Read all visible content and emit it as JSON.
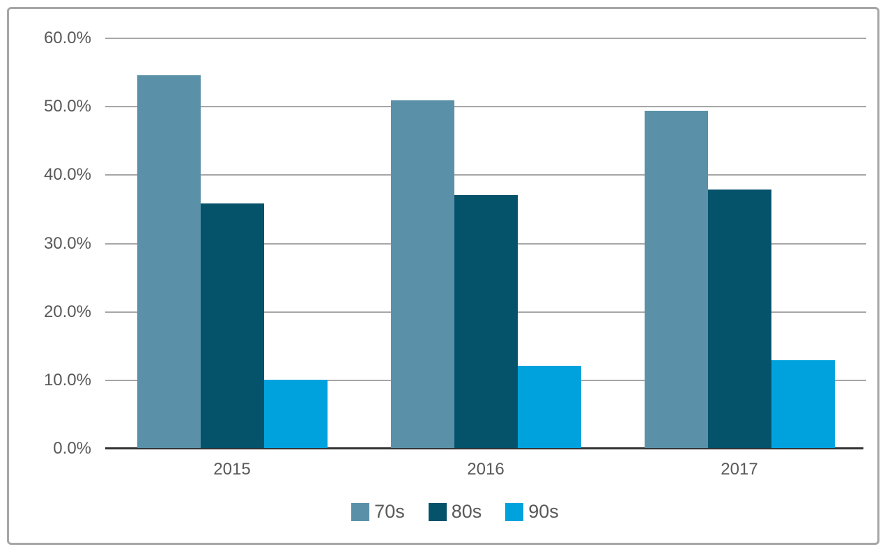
{
  "chart_data": {
    "type": "bar",
    "title": "",
    "xlabel": "",
    "ylabel": "",
    "categories": [
      "2015",
      "2016",
      "2017"
    ],
    "series": [
      {
        "name": "70s",
        "color": "#5B91A8",
        "values": [
          54.5,
          50.8,
          49.3
        ]
      },
      {
        "name": "80s",
        "color": "#05526B",
        "values": [
          35.8,
          37.0,
          37.8
        ]
      },
      {
        "name": "90s",
        "color": "#00A2DE",
        "values": [
          10.0,
          12.0,
          12.8
        ]
      }
    ],
    "ylim": [
      0,
      60
    ],
    "yticks": [
      {
        "value": 0,
        "label": "0.0%"
      },
      {
        "value": 10,
        "label": "10.0%"
      },
      {
        "value": 20,
        "label": "20.0%"
      },
      {
        "value": 30,
        "label": "30.0%"
      },
      {
        "value": 40,
        "label": "40.0%"
      },
      {
        "value": 50,
        "label": "50.0%"
      },
      {
        "value": 60,
        "label": "60.0%"
      }
    ],
    "grid": true,
    "legend_position": "bottom"
  },
  "colors": {
    "gridline": "#a6a6a6",
    "axis_line": "#333333",
    "tick_text": "#595959",
    "frame_border": "#a6a6a6",
    "background": "#ffffff"
  }
}
